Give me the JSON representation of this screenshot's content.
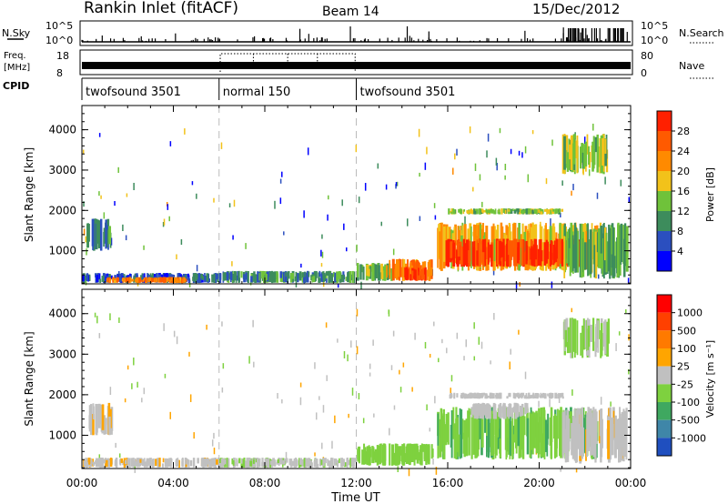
{
  "header": {
    "station": "Rankin Inlet (fitACF)",
    "beam": "Beam 14",
    "date": "15/Dec/2012"
  },
  "top_strip": {
    "nsky_label": "N.Sky",
    "nsky_ticks": [
      "10^5",
      "10^0"
    ],
    "nsearch_label": "N.Search",
    "nsearch_ticks": [
      "10^5",
      "10^0"
    ],
    "freq_label": "Freq.",
    "freq_unit": "[MHz]",
    "freq_ticks": [
      "18",
      "8"
    ],
    "nave_label": "Nave",
    "nave_ticks": [
      "80",
      "0"
    ],
    "cpid_label": "CPID",
    "modes": [
      {
        "name": "twofsound 3501",
        "start": 0,
        "end": 6
      },
      {
        "name": "normal 150",
        "start": 6,
        "end": 12
      },
      {
        "name": "twofsound 3501",
        "start": 12,
        "end": 24
      }
    ]
  },
  "x_axis": {
    "label": "Time UT",
    "ticks": [
      "00:00",
      "04:00",
      "08:00",
      "12:00",
      "16:00",
      "20:00",
      "00:00"
    ],
    "range_hours": [
      0,
      24
    ]
  },
  "chart_data": [
    {
      "type": "heatmap",
      "panel": "power",
      "ylabel": "Slant Range [km]",
      "yticks": [
        "1000",
        "2000",
        "3000",
        "4000"
      ],
      "ylim": [
        180,
        4600
      ],
      "xlim_hours": [
        0,
        24
      ],
      "colorbar_label": "Power [dB]",
      "colorbar_ticks": [
        "4",
        "8",
        "12",
        "16",
        "20",
        "24",
        "28"
      ],
      "colorbar_colors": [
        "#0000ff",
        "#2b4fbf",
        "#3d8c5c",
        "#6fc23a",
        "#f2c21a",
        "#ff8a00",
        "#ff5a00",
        "#ff2000"
      ],
      "colorbar_range": [
        0,
        30
      ],
      "regions": [
        {
          "t0": 0.0,
          "t1": 6.0,
          "r0": 200,
          "r1": 450,
          "level": 6
        },
        {
          "t0": 0.2,
          "t1": 1.3,
          "r0": 1000,
          "r1": 1800,
          "level": 8
        },
        {
          "t0": 1.0,
          "t1": 4.5,
          "r0": 200,
          "r1": 350,
          "level": 22
        },
        {
          "t0": 6.0,
          "t1": 12.0,
          "r0": 200,
          "r1": 500,
          "level": 10
        },
        {
          "t0": 12.0,
          "t1": 13.5,
          "r0": 250,
          "r1": 700,
          "level": 12
        },
        {
          "t0": 13.3,
          "t1": 15.3,
          "r0": 250,
          "r1": 800,
          "level": 22
        },
        {
          "t0": 14.0,
          "t1": 15.0,
          "r0": 250,
          "r1": 600,
          "level": 27
        },
        {
          "t0": 15.5,
          "t1": 22.5,
          "r0": 500,
          "r1": 1700,
          "level": 18
        },
        {
          "t0": 15.8,
          "t1": 21.8,
          "r0": 600,
          "r1": 1300,
          "level": 27
        },
        {
          "t0": 16.0,
          "t1": 21.0,
          "r0": 1900,
          "r1": 2050,
          "level": 14
        },
        {
          "t0": 21.0,
          "t1": 23.8,
          "r0": 300,
          "r1": 1700,
          "level": 12
        },
        {
          "t0": 21.0,
          "t1": 23.0,
          "r0": 2900,
          "r1": 3900,
          "level": 14
        }
      ]
    },
    {
      "type": "heatmap",
      "panel": "velocity",
      "ylabel": "Slant Range [km]",
      "yticks": [
        "1000",
        "2000",
        "3000",
        "4000"
      ],
      "ylim": [
        180,
        4600
      ],
      "xlim_hours": [
        0,
        24
      ],
      "colorbar_label": "Velocity [m s⁻¹]",
      "colorbar_ticks": [
        "1000",
        "500",
        "100",
        "25",
        "-25",
        "-100",
        "-500",
        "-1000"
      ],
      "colorbar_colors": [
        "#1f4fbf",
        "#3f86a8",
        "#3fa860",
        "#7ed13f",
        "#c0c0c0",
        "#ffa500",
        "#ff7a00",
        "#ff4000",
        "#ff0000"
      ],
      "colorbar_range": [
        -1200,
        1200
      ],
      "regions": [
        {
          "t0": 0.0,
          "t1": 6.0,
          "r0": 200,
          "r1": 450,
          "level": 60
        },
        {
          "t0": 0.2,
          "t1": 1.3,
          "r0": 1000,
          "r1": 1800,
          "level": 80
        },
        {
          "t0": 6.0,
          "t1": 12.0,
          "r0": 200,
          "r1": 450,
          "level": -80
        },
        {
          "t0": 12.0,
          "t1": 15.3,
          "r0": 250,
          "r1": 800,
          "level": -300
        },
        {
          "t0": 15.5,
          "t1": 22.5,
          "r0": 400,
          "r1": 1700,
          "level": -350
        },
        {
          "t0": 17.0,
          "t1": 19.5,
          "r0": 1400,
          "r1": 1800,
          "level": 0
        },
        {
          "t0": 16.0,
          "t1": 21.0,
          "r0": 1900,
          "r1": 2050,
          "level": 0
        },
        {
          "t0": 21.0,
          "t1": 23.8,
          "r0": 300,
          "r1": 1700,
          "level": 60
        },
        {
          "t0": 21.0,
          "t1": 23.0,
          "r0": 2900,
          "r1": 3900,
          "level": -150
        }
      ]
    }
  ]
}
